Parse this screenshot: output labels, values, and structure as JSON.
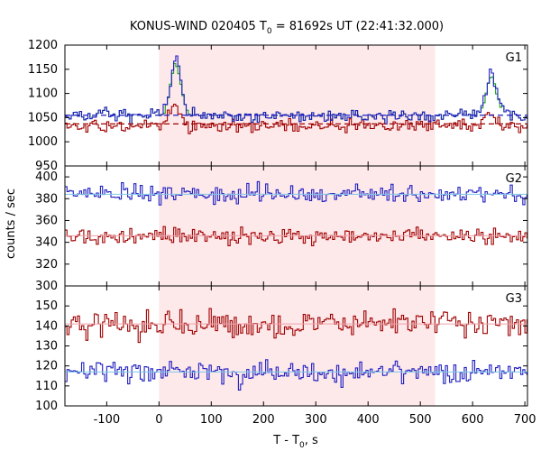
{
  "chart_data": {
    "type": "line",
    "title": "KONUS-WIND 020405 T",
    "title_sub": "0",
    "title_rest": " = 81692s UT (22:41:32.000)",
    "xlabel": "T - T",
    "xlabel_sub": "0",
    "xlabel_rest": ", s",
    "ylabel": "counts / sec",
    "xlim": [
      -180,
      705
    ],
    "xticks": [
      -100,
      0,
      100,
      200,
      300,
      400,
      500,
      600,
      700
    ],
    "shaded_interval": [
      0,
      528
    ],
    "colors": {
      "blue": "#1f1fc0",
      "red": "#a00000",
      "green": "#1aa01a",
      "shade": "#fde8ea",
      "fit": "#7ec8e8"
    },
    "panels": [
      {
        "label": "G1",
        "ylim": [
          950,
          1200
        ],
        "yticks": [
          950,
          1000,
          1050,
          1100,
          1150,
          1200
        ],
        "yticks_labeled": [
          1000,
          1050,
          1100,
          1150,
          1200
        ],
        "fits": [
          {
            "value": 1055,
            "color": "blue"
          },
          {
            "value": 1037,
            "color": "red"
          }
        ],
        "baseline": {
          "blue": 1053,
          "red": 1033
        },
        "bursts": [
          {
            "center": 30,
            "width": 10,
            "amplitude": {
              "blue": 115,
              "green": 110,
              "red": 50
            }
          },
          {
            "center": 634,
            "width": 10,
            "amplitude": {
              "blue": 85,
              "green": 80,
              "red": 25
            }
          }
        ],
        "noise": {
          "blue": 10,
          "red": 9
        }
      },
      {
        "label": "G2",
        "ylim": [
          300,
          410
        ],
        "yticks": [
          300,
          320,
          340,
          360,
          380,
          400
        ],
        "fits": [
          {
            "value": 384,
            "color": "blue"
          },
          {
            "value": 346,
            "color": "red"
          }
        ],
        "baseline": {
          "blue": 384,
          "red": 346
        },
        "bursts": [],
        "noise": {
          "blue": 6,
          "red": 5
        }
      },
      {
        "label": "G3",
        "ylim": [
          100,
          160
        ],
        "yticks": [
          100,
          110,
          120,
          130,
          140,
          150
        ],
        "fits": [
          {
            "value": 141,
            "color": "red"
          },
          {
            "value": 117,
            "color": "blue"
          }
        ],
        "baseline": {
          "blue": 117,
          "red": 141
        },
        "bursts": [],
        "noise": {
          "blue": 4,
          "red": 4.5
        }
      }
    ]
  }
}
